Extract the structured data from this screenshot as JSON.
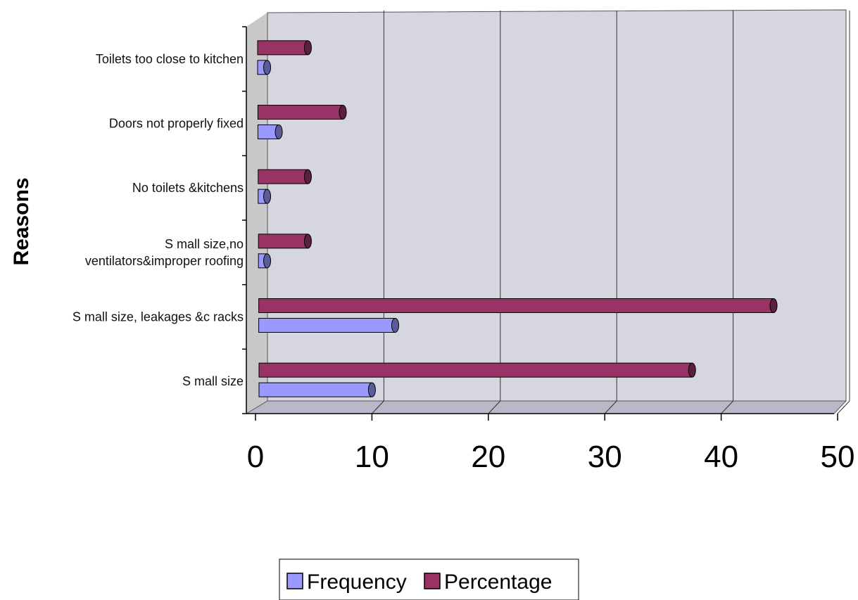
{
  "chart_data": {
    "type": "bar",
    "orientation": "horizontal",
    "title": "",
    "ylabel": "Reasons",
    "xlabel": "",
    "xlim": [
      0,
      50
    ],
    "xticks": [
      0,
      10,
      20,
      30,
      40,
      50
    ],
    "grid": true,
    "legend_position": "bottom",
    "categories": [
      "Toilets too close to kitchen",
      "Doors not properly fixed",
      "No toilets &kitchens",
      "S mall size,no ventilators&improper roofing",
      "S mall size, leakages &c racks",
      "S mall size"
    ],
    "series": [
      {
        "name": "Frequency",
        "color": "#9999ff",
        "values": [
          1,
          2,
          1,
          1,
          12,
          10
        ]
      },
      {
        "name": "Percentage",
        "color": "#993366",
        "values": [
          4.5,
          7.5,
          4.5,
          4.5,
          44.5,
          37.5
        ]
      }
    ]
  }
}
